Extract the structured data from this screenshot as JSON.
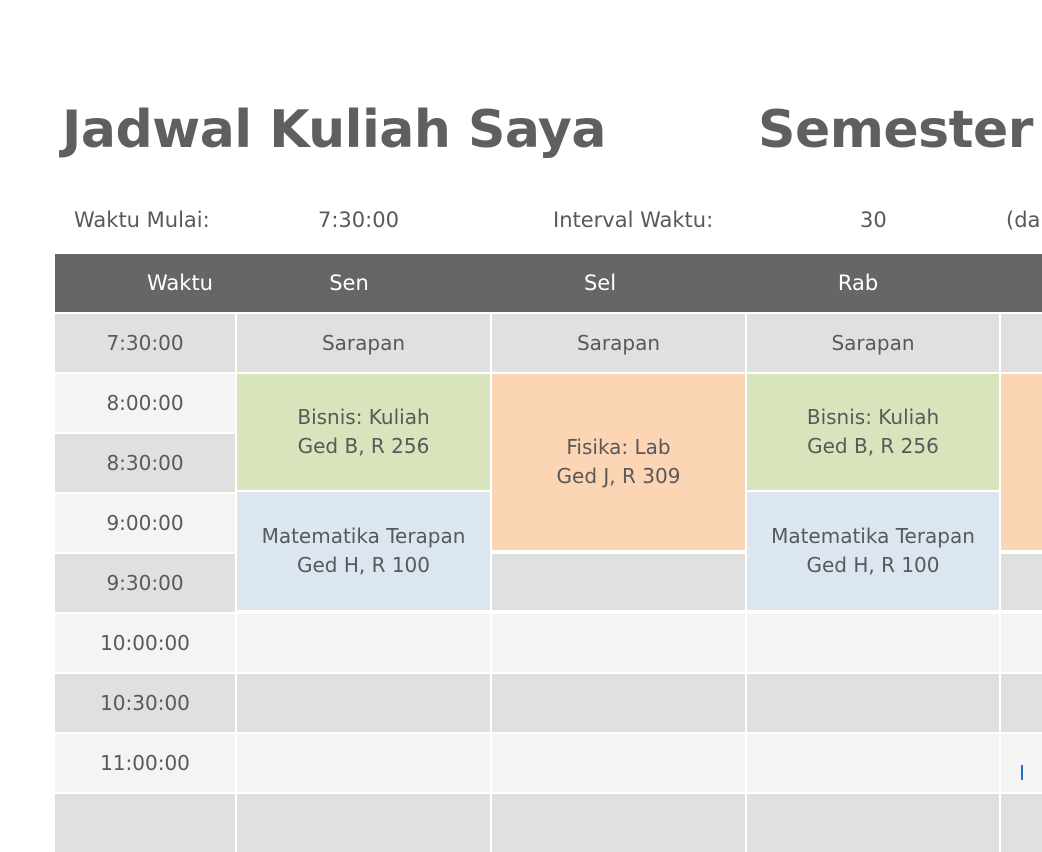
{
  "title": "Jadwal Kuliah Saya",
  "subtitle": "Semester",
  "settings": {
    "start_label": "Waktu Mulai:",
    "start_value": "7:30:00",
    "interval_label": "Interval Waktu:",
    "interval_value": "30",
    "interval_unit": "(da"
  },
  "header": {
    "time": "Waktu",
    "days": [
      "Sen",
      "Sel",
      "Rab"
    ]
  },
  "times": [
    "7:30:00",
    "8:00:00",
    "8:30:00",
    "9:00:00",
    "9:30:00",
    "10:00:00",
    "10:30:00",
    "11:00:00"
  ],
  "events": {
    "breakfast": "Sarapan",
    "business": {
      "line1": "Bisnis: Kuliah",
      "line2": "Ged B, R 256"
    },
    "math": {
      "line1": "Matematika Terapan",
      "line2": "Ged H, R 100"
    },
    "physics": {
      "line1": "Fisika: Lab",
      "line2": "Ged J, R 309"
    }
  },
  "colors": {
    "header": "#666666",
    "business": "#d8e4bc",
    "math": "#dce6f1",
    "physics": "#fcd5b4"
  }
}
